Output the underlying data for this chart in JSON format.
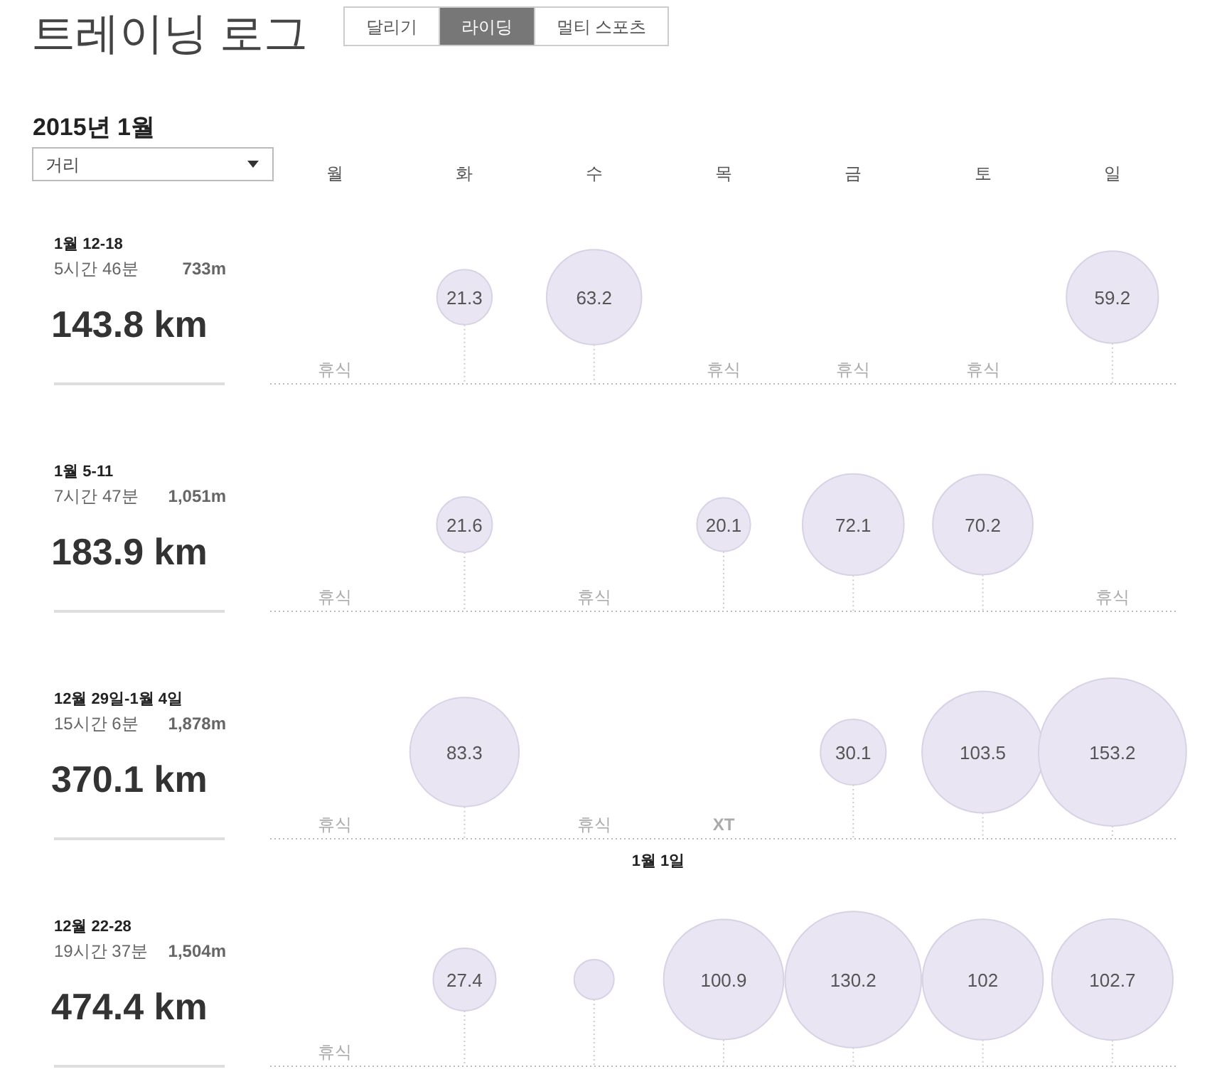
{
  "chart_data": [
    {
      "type": "other",
      "title": "트레이닝 로그",
      "subtitle": "2015년 1월",
      "annotations": [
        "달리기",
        "라이딩",
        "멀티 스포츠",
        "거리"
      ]
    },
    {
      "type": "other",
      "categories": [
        "월",
        "화",
        "수",
        "목",
        "금",
        "토",
        "일"
      ],
      "series": [
        {
          "color": "#e9e5f2",
          "values": [
            null,
            21.3,
            63.2,
            null,
            null,
            null,
            59.2
          ],
          "value_labels": [
            "휴식",
            "21.3",
            "63.2",
            "휴식",
            "휴식",
            "휴식",
            "59.2"
          ]
        },
        {
          "color": "#e9e5f2",
          "values": [
            null,
            21.6,
            null,
            20.1,
            72.1,
            70.2,
            null
          ],
          "value_labels": [
            "휴식",
            "21.6",
            "휴식",
            "20.1",
            "72.1",
            "70.2",
            "휴식"
          ]
        },
        {
          "color": "#e9e5f2",
          "values": [
            null,
            83.3,
            null,
            null,
            30.1,
            103.5,
            153.2
          ],
          "value_labels": [
            "휴식",
            "83.3",
            "휴식",
            "XT",
            "30.1",
            "103.5",
            "153.2"
          ]
        },
        {
          "colors": [
            null,
            "#e9e5f2",
            "#e9e5f2",
            "#e9e5f2",
            "#e9e5f2",
            "#e9e5f2",
            "#e9e5f2"
          ],
          "values": [
            null,
            27.4,
            null,
            100.9,
            130.2,
            102,
            102.7
          ],
          "value_labels": [
            "휴식",
            "27.4",
            null,
            "100.9",
            "130.2",
            "102",
            "102.7"
          ]
        }
      ],
      "annotations": [
        "1월 12-18",
        "5시간 46분",
        "733m",
        "143.8 km",
        "1월 5-11",
        "7시간 47분",
        "1,051m",
        "183.9 km",
        "12월 29일-1월 4일",
        "15시간 6분",
        "1,878m",
        "370.1 km",
        "12월 22-28",
        "19시간 37분",
        "1,504m",
        "474.4 km",
        "1월 1일"
      ]
    }
  ]
}
